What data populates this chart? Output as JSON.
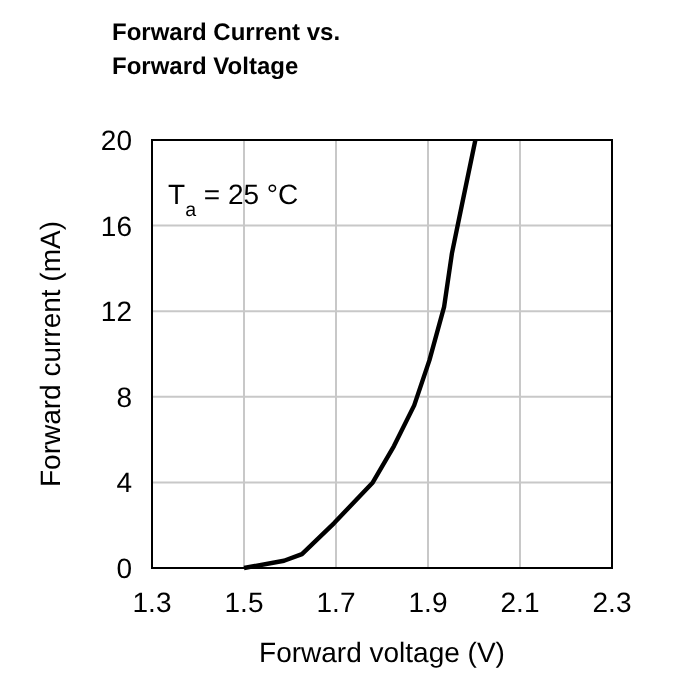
{
  "chart_data": {
    "type": "line",
    "title": "Forward Current vs. Forward Voltage",
    "xlabel": "Forward voltage (V)",
    "ylabel": "Forward current (mA)",
    "annotations": [
      "T$_{a}$ = 25 °C"
    ],
    "x": [
      1.5,
      1.587,
      1.626,
      1.696,
      1.78,
      1.826,
      1.87,
      1.903,
      1.935,
      1.952,
      1.974,
      2.003
    ],
    "series": [
      {
        "color": "#000000",
        "values": [
          0,
          0.34,
          0.65,
          2.1,
          4.0,
          5.7,
          7.6,
          9.7,
          12.2,
          14.7,
          17.0,
          20
        ]
      }
    ],
    "xlim": [
      1.3,
      2.3
    ],
    "xticks": [
      1.3,
      1.5,
      1.7,
      1.9,
      2.1,
      2.3
    ],
    "ylim": [
      0,
      20
    ],
    "yticks": [
      0,
      4,
      8,
      12,
      16,
      20
    ],
    "grid": true,
    "marker": "none",
    "line_style": "solid"
  }
}
